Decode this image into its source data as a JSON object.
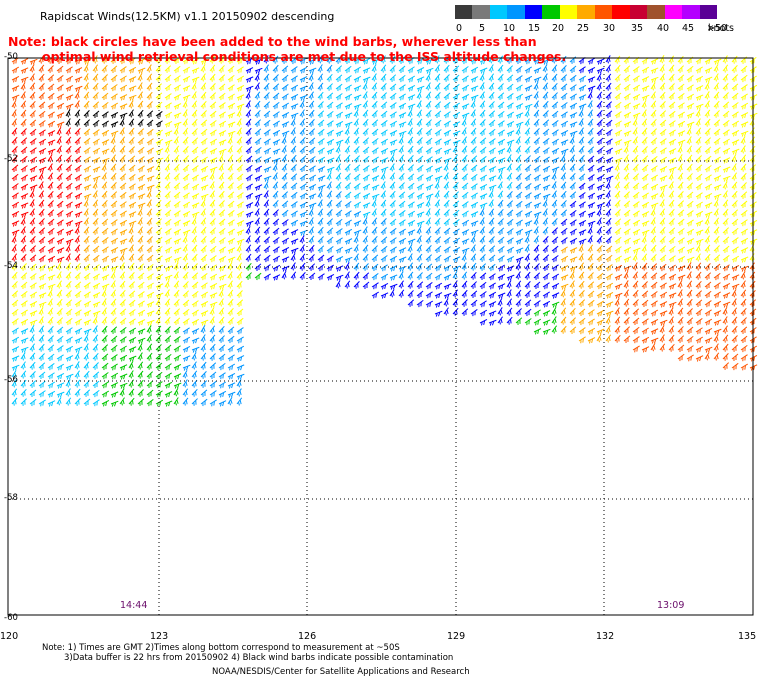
{
  "title": "Rapidscat Winds(12.5KM) v1.1 20150902 descending",
  "note": {
    "line1": "Note: black circles have been added to the wind barbs, wherever less than",
    "line2": "optimal wind retrieval conditions are met due to the ISS altitude changes."
  },
  "legend": {
    "labels": [
      "0",
      "5",
      "10",
      "15",
      "20",
      "25",
      "30",
      "35",
      "40",
      "45",
      ">50"
    ],
    "unit": "knots",
    "colors": [
      "#3a3a3a",
      "#7a7a7a",
      "#00c8ff",
      "#0096ff",
      "#0000ff",
      "#00c800",
      "#ffff00",
      "#ffaa00",
      "#ff5500",
      "#ff0000",
      "#c80032",
      "#a0522d",
      "#ff00ff",
      "#b400ff",
      "#5a0096"
    ]
  },
  "map": {
    "lat_labels": [
      "-50",
      "-52",
      "-54",
      "-56",
      "-58",
      "-60"
    ],
    "lon_labels": [
      "120",
      "123",
      "126",
      "129",
      "132",
      "135"
    ],
    "time_labels": [
      "14:44",
      "13:09"
    ]
  },
  "footer": {
    "line1": "Note: 1) Times are GMT 2)Times along bottom correspond to measurement at ~50S",
    "line2": "3)Data buffer is 22 hrs from 20150902 4) Black wind barbs indicate possible contamination",
    "credit": "NOAA/NESDIS/Center for Satellite Applications and Research"
  }
}
